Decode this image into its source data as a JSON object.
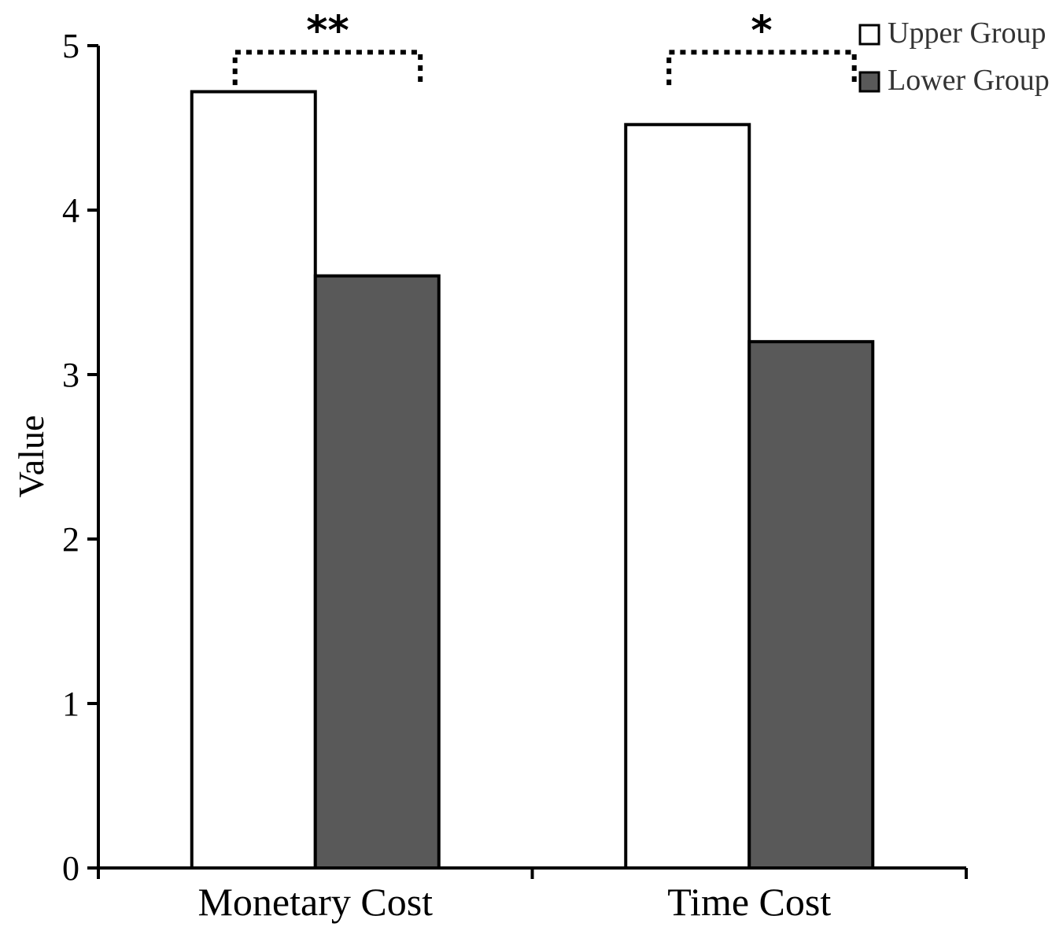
{
  "chart_data": {
    "type": "bar",
    "title": "",
    "xlabel": "",
    "ylabel": "Value",
    "ylim": [
      0,
      5
    ],
    "yticks": [
      "0",
      "1",
      "2",
      "3",
      "4",
      "5"
    ],
    "categories": [
      "Monetary Cost",
      "Time Cost"
    ],
    "series": [
      {
        "name": "Upper Group",
        "color": "#ffffff",
        "values": [
          4.72,
          4.52
        ]
      },
      {
        "name": "Lower Group",
        "color": "#595959",
        "values": [
          3.6,
          3.2
        ]
      }
    ],
    "significance": [
      "**",
      "*"
    ],
    "legend_position": "top-right",
    "grid": false
  }
}
